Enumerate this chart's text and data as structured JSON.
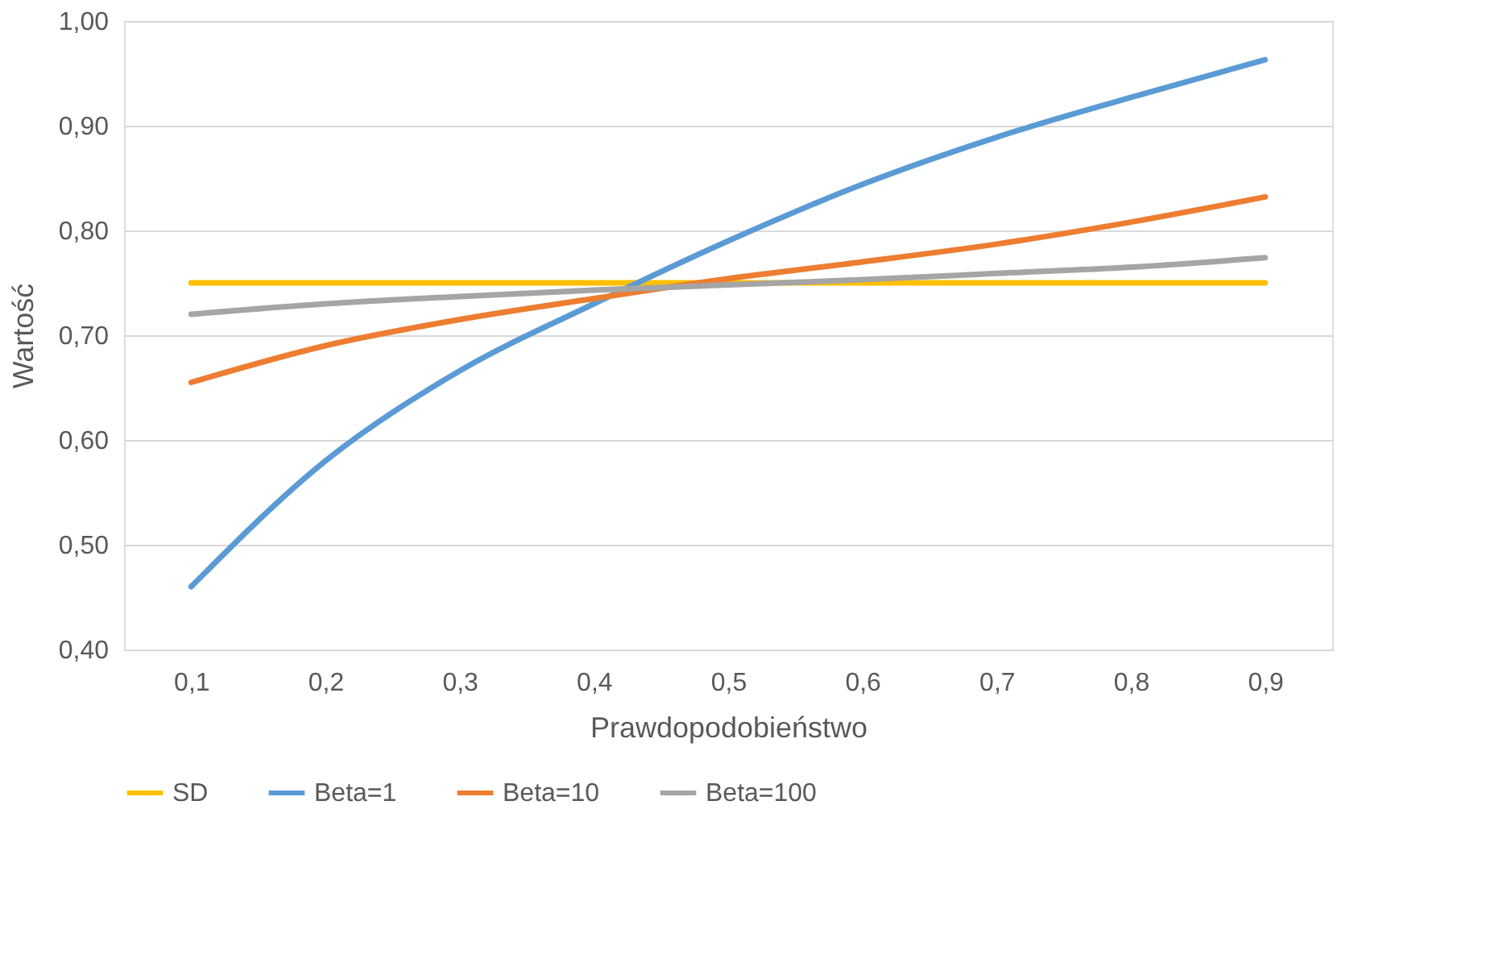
{
  "chart_data": {
    "type": "line",
    "xlabel": "Prawdopodobieństwo",
    "ylabel": "Wartość",
    "categories": [
      "0,1",
      "0,2",
      "0,3",
      "0,4",
      "0,5",
      "0,6",
      "0,7",
      "0,8",
      "0,9"
    ],
    "series": [
      {
        "name": "SD",
        "color": "#ffc000",
        "values": [
          0.75,
          0.75,
          0.75,
          0.75,
          0.75,
          0.75,
          0.75,
          0.75,
          0.75
        ]
      },
      {
        "name": "Beta=1",
        "color": "#5b9bd5",
        "values": [
          0.46,
          0.58,
          0.666,
          0.73,
          0.79,
          0.844,
          0.889,
          0.927,
          0.963
        ]
      },
      {
        "name": "Beta=10",
        "color": "#ed7d31",
        "values": [
          0.655,
          0.69,
          0.715,
          0.735,
          0.754,
          0.77,
          0.787,
          0.808,
          0.832
        ]
      },
      {
        "name": "Beta=100",
        "color": "#a5a5a5",
        "values": [
          0.72,
          0.73,
          0.737,
          0.743,
          0.748,
          0.753,
          0.759,
          0.765,
          0.774
        ]
      }
    ],
    "ylim": [
      0.4,
      1.0
    ],
    "yticks": [
      {
        "value": 0.4,
        "label": "0,40"
      },
      {
        "value": 0.5,
        "label": "0,50"
      },
      {
        "value": 0.6,
        "label": "0,60"
      },
      {
        "value": 0.7,
        "label": "0,70"
      },
      {
        "value": 0.8,
        "label": "0,80"
      },
      {
        "value": 0.9,
        "label": "0,90"
      },
      {
        "value": 1.0,
        "label": "1,00"
      }
    ],
    "grid": "y",
    "legend": "bottom",
    "marker": "none",
    "line_style": "solid"
  }
}
